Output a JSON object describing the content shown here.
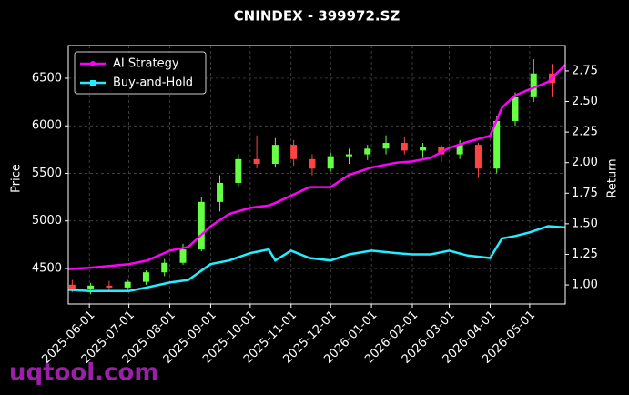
{
  "chart_data": {
    "type": "candlestick",
    "title": "CNINDEX - 399972.SZ",
    "ylabel": "Price",
    "y2label": "Return",
    "watermark": "uqtool.com",
    "xlim": [
      "2025-05-16",
      "2026-05-28"
    ],
    "xticks": [
      "2025-06-01",
      "2025-07-01",
      "2025-08-01",
      "2025-09-01",
      "2025-10-01",
      "2025-11-01",
      "2025-12-01",
      "2026-01-01",
      "2026-02-01",
      "2026-03-01",
      "2026-04-01",
      "2026-05-01"
    ],
    "ylim": [
      4127,
      6844
    ],
    "yticks": [
      4500,
      5000,
      5500,
      6000,
      6500
    ],
    "y2lim": [
      0.844,
      2.958
    ],
    "y2ticks": [
      {
        "value": 1,
        "label": "1.00"
      },
      1.25,
      {
        "value": 1.5,
        "label": "1.50"
      },
      1.75,
      {
        "value": 2,
        "label": "2.00"
      },
      2.25,
      {
        "value": 2.5,
        "label": "2.50"
      },
      2.75
    ],
    "grid": true,
    "legend": "upper left",
    "up_color": "#66ff44",
    "down_color": "#ff4444",
    "candles": {
      "x": [
        "2025-05-19",
        "2025-06-02",
        "2025-06-16",
        "2025-06-30",
        "2025-07-14",
        "2025-07-28",
        "2025-08-11",
        "2025-08-25",
        "2025-09-08",
        "2025-09-22",
        "2025-10-06",
        "2025-10-20",
        "2025-11-03",
        "2025-11-17",
        "2025-12-01",
        "2025-12-15",
        "2025-12-29",
        "2026-01-12",
        "2026-01-26",
        "2026-02-09",
        "2026-02-23",
        "2026-03-09",
        "2026-03-23",
        "2026-04-06",
        "2026-04-20",
        "2026-05-04",
        "2026-05-18"
      ],
      "open": [
        4330,
        4290,
        4320,
        4300,
        4360,
        4460,
        4560,
        4700,
        5200,
        5400,
        5650,
        5600,
        5800,
        5650,
        5550,
        5680,
        5700,
        5760,
        5820,
        5740,
        5780,
        5700,
        5800,
        5550,
        6050,
        6300,
        6550
      ],
      "high": [
        4380,
        4350,
        4370,
        4380,
        4480,
        4600,
        4760,
        5250,
        5480,
        5700,
        5900,
        5870,
        5850,
        5700,
        5720,
        5760,
        5800,
        5900,
        5880,
        5820,
        5800,
        5850,
        5820,
        6100,
        6350,
        6700,
        6650
      ],
      "low": [
        4250,
        4230,
        4260,
        4250,
        4330,
        4420,
        4540,
        4680,
        5100,
        5350,
        5550,
        5560,
        5580,
        5480,
        5520,
        5600,
        5640,
        5700,
        5700,
        5660,
        5620,
        5650,
        5450,
        5500,
        6000,
        6250,
        6300
      ],
      "close": [
        4290,
        4320,
        4300,
        4360,
        4460,
        4560,
        4700,
        5200,
        5400,
        5650,
        5600,
        5800,
        5650,
        5550,
        5680,
        5700,
        5760,
        5820,
        5740,
        5780,
        5700,
        5800,
        5550,
        6050,
        6300,
        6550,
        6450
      ]
    },
    "x": [
      "2025-05-16",
      "2025-06-01",
      "2025-07-01",
      "2025-07-15",
      "2025-08-01",
      "2025-08-15",
      "2025-09-01",
      "2025-09-15",
      "2025-10-01",
      "2025-10-15",
      "2025-10-20",
      "2025-11-01",
      "2025-11-15",
      "2025-12-01",
      "2025-12-15",
      "2026-01-01",
      "2026-01-20",
      "2026-02-01",
      "2026-02-15",
      "2026-03-01",
      "2026-03-15",
      "2026-04-01",
      "2026-04-10",
      "2026-04-20",
      "2026-05-01",
      "2026-05-15",
      "2026-05-28"
    ],
    "series": [
      {
        "name": "AI Strategy",
        "color": "#ff00ff",
        "axis": "y2",
        "marker": "circle",
        "values": [
          1.13,
          1.14,
          1.17,
          1.2,
          1.28,
          1.31,
          1.48,
          1.58,
          1.63,
          1.65,
          1.67,
          1.73,
          1.8,
          1.8,
          1.9,
          1.96,
          2.0,
          2.01,
          2.04,
          2.12,
          2.17,
          2.22,
          2.45,
          2.55,
          2.6,
          2.66,
          2.8
        ]
      },
      {
        "name": "Buy-and-Hold",
        "color": "#22eeff",
        "axis": "y2",
        "marker": "square",
        "values": [
          0.96,
          0.95,
          0.95,
          0.98,
          1.02,
          1.04,
          1.17,
          1.2,
          1.26,
          1.29,
          1.2,
          1.28,
          1.22,
          1.2,
          1.25,
          1.28,
          1.26,
          1.25,
          1.25,
          1.28,
          1.24,
          1.22,
          1.38,
          1.4,
          1.43,
          1.48,
          1.47
        ]
      }
    ]
  }
}
